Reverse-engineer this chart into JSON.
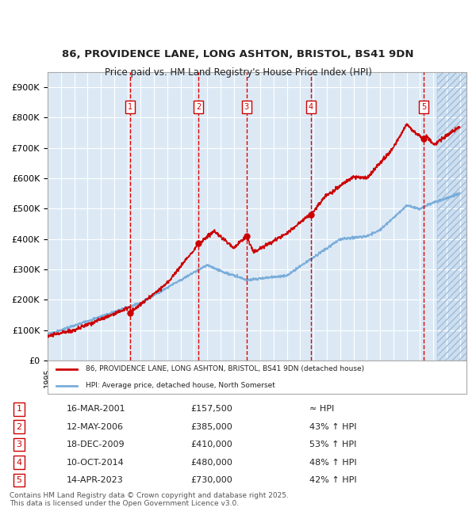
{
  "title_line1": "86, PROVIDENCE LANE, LONG ASHTON, BRISTOL, BS41 9DN",
  "title_line2": "Price paid vs. HM Land Registry's House Price Index (HPI)",
  "ylabel_color": "#222222",
  "background_color": "#ffffff",
  "plot_bg_color": "#dce9f5",
  "hatch_color": "#b0c8e8",
  "grid_color": "#ffffff",
  "red_line_color": "#cc0000",
  "blue_line_color": "#7aadda",
  "sale_marker_color": "#cc0000",
  "vline_color": "#dd0000",
  "ylim": [
    0,
    950000
  ],
  "yticks": [
    0,
    100000,
    200000,
    300000,
    400000,
    500000,
    600000,
    700000,
    800000,
    900000
  ],
  "ytick_labels": [
    "£0",
    "£100K",
    "£200K",
    "£300K",
    "£400K",
    "£500K",
    "£600K",
    "£700K",
    "£800K",
    "£900K"
  ],
  "xmin": 1995.0,
  "xmax": 2026.5,
  "sale_dates": [
    2001.21,
    2006.36,
    2009.96,
    2014.78,
    2023.29
  ],
  "sale_prices": [
    157500,
    385000,
    410000,
    480000,
    730000
  ],
  "sale_labels": [
    "1",
    "2",
    "3",
    "4",
    "5"
  ],
  "legend_red_label": "86, PROVIDENCE LANE, LONG ASHTON, BRISTOL, BS41 9DN (detached house)",
  "legend_blue_label": "HPI: Average price, detached house, North Somerset",
  "table_rows": [
    [
      "1",
      "16-MAR-2001",
      "£157,500",
      "≈ HPI"
    ],
    [
      "2",
      "12-MAY-2006",
      "£385,000",
      "43% ↑ HPI"
    ],
    [
      "3",
      "18-DEC-2009",
      "£410,000",
      "53% ↑ HPI"
    ],
    [
      "4",
      "10-OCT-2014",
      "£480,000",
      "48% ↑ HPI"
    ],
    [
      "5",
      "14-APR-2023",
      "£730,000",
      "42% ↑ HPI"
    ]
  ],
  "footer": "Contains HM Land Registry data © Crown copyright and database right 2025.\nThis data is licensed under the Open Government Licence v3.0.",
  "hatch_start": 2024.29
}
